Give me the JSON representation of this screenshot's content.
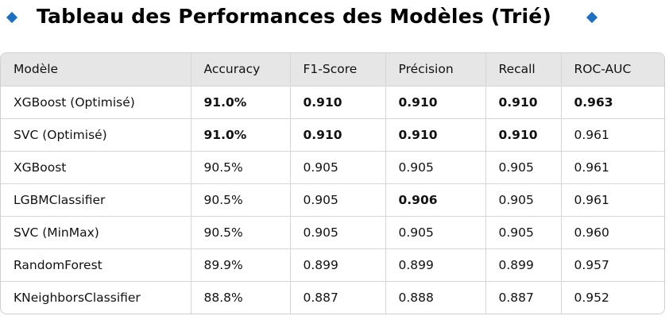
{
  "title": "Tableau des Performances des Modèles (Trié)",
  "icons": {
    "left": "blue-diamond-icon",
    "right": "blue-diamond-icon"
  },
  "colors": {
    "diamond": "#1e6fc0",
    "header_bg": "#e6e6e6",
    "border": "#d6d6d6"
  },
  "table": {
    "headers": [
      "Modèle",
      "Accuracy",
      "F1-Score",
      "Précision",
      "Recall",
      "ROC-AUC"
    ],
    "rows": [
      {
        "cells": [
          "XGBoost (Optimisé)",
          "91.0%",
          "0.910",
          "0.910",
          "0.910",
          "0.963"
        ],
        "bold": [
          false,
          true,
          true,
          true,
          true,
          true
        ]
      },
      {
        "cells": [
          "SVC (Optimisé)",
          "91.0%",
          "0.910",
          "0.910",
          "0.910",
          "0.961"
        ],
        "bold": [
          false,
          true,
          true,
          true,
          true,
          false
        ]
      },
      {
        "cells": [
          "XGBoost",
          "90.5%",
          "0.905",
          "0.905",
          "0.905",
          "0.961"
        ],
        "bold": [
          false,
          false,
          false,
          false,
          false,
          false
        ]
      },
      {
        "cells": [
          "LGBMClassifier",
          "90.5%",
          "0.905",
          "0.906",
          "0.905",
          "0.961"
        ],
        "bold": [
          false,
          false,
          false,
          true,
          false,
          false
        ]
      },
      {
        "cells": [
          "SVC (MinMax)",
          "90.5%",
          "0.905",
          "0.905",
          "0.905",
          "0.960"
        ],
        "bold": [
          false,
          false,
          false,
          false,
          false,
          false
        ]
      },
      {
        "cells": [
          "RandomForest",
          "89.9%",
          "0.899",
          "0.899",
          "0.899",
          "0.957"
        ],
        "bold": [
          false,
          false,
          false,
          false,
          false,
          false
        ]
      },
      {
        "cells": [
          "KNeighborsClassifier",
          "88.8%",
          "0.887",
          "0.888",
          "0.887",
          "0.952"
        ],
        "bold": [
          false,
          false,
          false,
          false,
          false,
          false
        ]
      }
    ]
  }
}
